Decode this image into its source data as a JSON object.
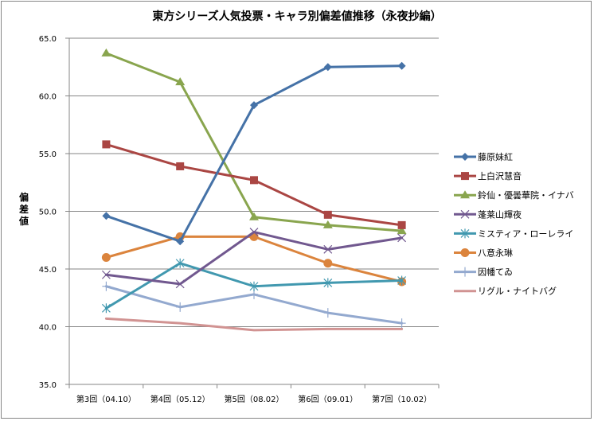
{
  "chart_data": {
    "type": "line",
    "title": "東方シリーズ人気投票・キャラ別偏差値推移（永夜抄編）",
    "xlabel": "",
    "ylabel": "偏差値",
    "ylim": [
      35.0,
      65.0
    ],
    "ytick_step": 5,
    "ytick_labels": [
      "35.0",
      "40.0",
      "45.0",
      "50.0",
      "55.0",
      "60.0",
      "65.0"
    ],
    "grid": "horizontal",
    "legend_position": "right",
    "categories": [
      "第3回（04.10）",
      "第4回（05.12）",
      "第5回（08.02）",
      "第6回（09.01）",
      "第7回（10.02）"
    ],
    "series": [
      {
        "name": "藤原妹紅",
        "color": "#4572A7",
        "marker": "diamond",
        "values": [
          49.6,
          47.4,
          59.2,
          62.5,
          62.6
        ]
      },
      {
        "name": "上白沢慧音",
        "color": "#AA4643",
        "marker": "square",
        "values": [
          55.8,
          53.9,
          52.7,
          49.7,
          48.8
        ]
      },
      {
        "name": "鈴仙・優曇華院・イナバ",
        "color": "#89A54E",
        "marker": "triangle",
        "values": [
          63.7,
          61.2,
          49.5,
          48.8,
          48.3
        ]
      },
      {
        "name": "蓬莱山輝夜",
        "color": "#71588F",
        "marker": "x",
        "values": [
          44.5,
          43.7,
          48.2,
          46.7,
          47.7
        ]
      },
      {
        "name": "ミスティア・ローレライ",
        "color": "#4198AF",
        "marker": "star",
        "values": [
          41.6,
          45.5,
          43.5,
          43.8,
          44.0
        ]
      },
      {
        "name": "八意永琳",
        "color": "#DB843D",
        "marker": "circle",
        "values": [
          46.0,
          47.8,
          47.8,
          45.5,
          43.9
        ]
      },
      {
        "name": "因幡てゐ",
        "color": "#93A9CF",
        "marker": "plus",
        "values": [
          43.5,
          41.7,
          42.8,
          41.2,
          40.3
        ]
      },
      {
        "name": "リグル・ナイトバグ",
        "color": "#D19392",
        "marker": "none",
        "values": [
          40.7,
          40.3,
          39.7,
          39.8,
          39.8
        ]
      }
    ]
  }
}
